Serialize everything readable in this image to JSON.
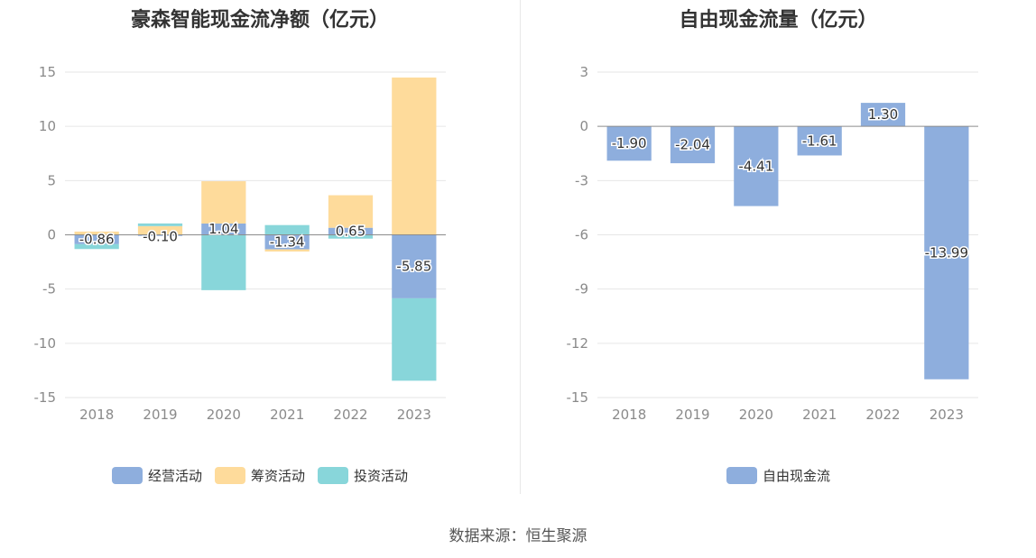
{
  "charts": {
    "left": {
      "title": "豪森智能现金流净额（亿元）",
      "legend": [
        {
          "label": "经营活动",
          "color": "#8eaedd"
        },
        {
          "label": "筹资活动",
          "color": "#fedb9b"
        },
        {
          "label": "投资活动",
          "color": "#88d6da"
        }
      ]
    },
    "right": {
      "title": "自由现金流量（亿元）",
      "legend": [
        {
          "label": "自由现金流",
          "color": "#8eaedd"
        }
      ]
    }
  },
  "footer": "数据来源：恒生聚源",
  "chart_data": [
    {
      "type": "bar",
      "stacked": true,
      "title": "豪森智能现金流净额（亿元）",
      "categories": [
        "2018",
        "2019",
        "2020",
        "2021",
        "2022",
        "2023"
      ],
      "ylim": [
        -15,
        15
      ],
      "yticks": [
        15,
        10,
        5,
        0,
        -5,
        -10,
        -15
      ],
      "grid": true,
      "legend_position": "bottom",
      "series": [
        {
          "name": "经营活动",
          "color": "#8eaedd",
          "values": [
            -0.86,
            -0.1,
            1.04,
            -1.34,
            0.65,
            -5.85
          ],
          "labels": [
            "-0.86",
            "-0.10",
            "1.04",
            "-1.34",
            "0.65",
            "-5.85"
          ]
        },
        {
          "name": "筹资活动",
          "color": "#fedb9b",
          "values": [
            0.3,
            0.8,
            3.9,
            -0.2,
            3.0,
            14.5
          ]
        },
        {
          "name": "投资活动",
          "color": "#88d6da",
          "values": [
            -0.45,
            0.25,
            -5.1,
            0.9,
            -0.35,
            -7.6
          ]
        }
      ]
    },
    {
      "type": "bar",
      "title": "自由现金流量（亿元）",
      "categories": [
        "2018",
        "2019",
        "2020",
        "2021",
        "2022",
        "2023"
      ],
      "ylim": [
        -15,
        3
      ],
      "yticks": [
        3,
        0,
        -3,
        -6,
        -9,
        -12,
        -15
      ],
      "grid": true,
      "legend_position": "bottom",
      "series": [
        {
          "name": "自由现金流",
          "color": "#8eaedd",
          "values": [
            -1.9,
            -2.04,
            -4.41,
            -1.61,
            1.3,
            -13.99
          ],
          "labels": [
            "-1.90",
            "-2.04",
            "-4.41",
            "-1.61",
            "1.30",
            "-13.99"
          ]
        }
      ]
    }
  ]
}
